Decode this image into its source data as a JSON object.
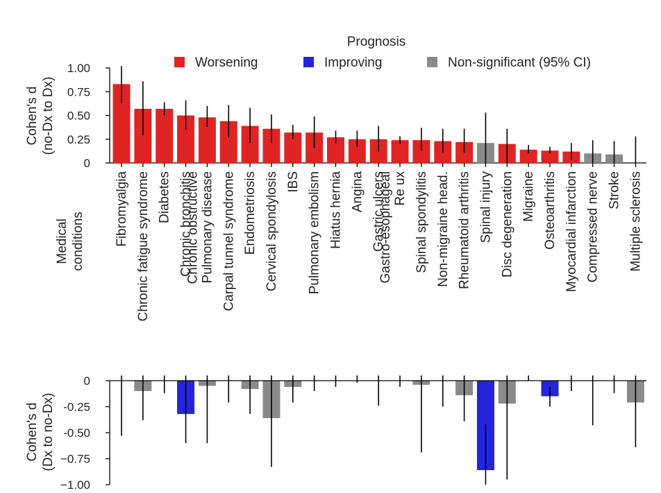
{
  "chart_data": {
    "type": "bar",
    "title": "",
    "legend": {
      "title": "Prognosis",
      "placement": "top-right",
      "entries": [
        {
          "label": "Worsening",
          "color": "#e02424"
        },
        {
          "label": "Improving",
          "color": "#2424dd"
        },
        {
          "label": "Non-significant (95% CI)",
          "color": "#8a8a8a"
        }
      ]
    },
    "xlabel": [
      "Medical",
      "conditions"
    ],
    "categories": [
      [
        "Fibromyalgia"
      ],
      [
        "Chronic fatigue syndrome"
      ],
      [
        "Diabetes"
      ],
      [
        "Chronic bronchitis"
      ],
      [
        "Chronic obstructive",
        "Pulmonary disease"
      ],
      [
        "Carpal tunnel syndrome"
      ],
      [
        "Endometriosis"
      ],
      [
        "Cervical spondylosis"
      ],
      [
        "IBS"
      ],
      [
        "Pulmonary embolism"
      ],
      [
        "Hiatus hernia"
      ],
      [
        "Angina"
      ],
      [
        "Gastric ulcers"
      ],
      [
        "Gastro-esophageal",
        "Re  ux"
      ],
      [
        "Spinal spondylitis"
      ],
      [
        "Non-migraine head."
      ],
      [
        "Rheumatoid arthritis"
      ],
      [
        "Spinal injury"
      ],
      [
        "Disc degeneration"
      ],
      [
        "Migraine"
      ],
      [
        "Osteoarthritis"
      ],
      [
        "Myocardial infarction"
      ],
      [
        "Compressed nerve"
      ],
      [
        "Stroke"
      ],
      [
        "Multiple sclerosis"
      ]
    ],
    "top": {
      "ylabel": [
        "Cohen's d",
        "(no-Dx to Dx)"
      ],
      "ylim": [
        0,
        1.0
      ],
      "yticks": [
        0,
        0.25,
        0.5,
        0.75,
        1.0
      ],
      "ytick_labels": [
        "0",
        "0.25",
        "0.50",
        "0.75",
        "1.00"
      ],
      "values": [
        0.83,
        0.57,
        0.57,
        0.5,
        0.48,
        0.44,
        0.39,
        0.36,
        0.32,
        0.32,
        0.27,
        0.25,
        0.25,
        0.24,
        0.24,
        0.23,
        0.22,
        0.21,
        0.2,
        0.14,
        0.13,
        0.12,
        0.1,
        0.09,
        0.0
      ],
      "ci_low": [
        0.63,
        0.29,
        0.5,
        0.35,
        0.38,
        0.27,
        0.21,
        0.21,
        0.25,
        0.16,
        0.21,
        0.17,
        0.12,
        0.2,
        0.13,
        0.11,
        0.11,
        0.0,
        0.0,
        0.1,
        0.1,
        0.03,
        0.0,
        0.0,
        0.0
      ],
      "ci_high": [
        1.02,
        0.86,
        0.64,
        0.66,
        0.6,
        0.61,
        0.58,
        0.51,
        0.4,
        0.49,
        0.34,
        0.34,
        0.39,
        0.28,
        0.37,
        0.36,
        0.36,
        0.53,
        0.36,
        0.19,
        0.17,
        0.21,
        0.24,
        0.23,
        0.28
      ],
      "status": [
        "w",
        "w",
        "w",
        "w",
        "w",
        "w",
        "w",
        "w",
        "w",
        "w",
        "w",
        "w",
        "w",
        "w",
        "w",
        "w",
        "w",
        "n",
        "w",
        "w",
        "w",
        "w",
        "n",
        "n",
        "n"
      ]
    },
    "bottom": {
      "ylabel": [
        "Cohen's d",
        "(Dx to no-Dx)"
      ],
      "ylim": [
        -1.0,
        0
      ],
      "yticks": [
        0,
        -0.25,
        -0.5,
        -0.75,
        -1.0
      ],
      "ytick_labels": [
        "0",
        "-0.25",
        "-0.50",
        "−0.75",
        "−1.00"
      ],
      "values": [
        0.0,
        -0.1,
        0.0,
        -0.32,
        -0.05,
        0.0,
        -0.08,
        -0.36,
        -0.06,
        0.0,
        0.0,
        0.0,
        0.0,
        0.0,
        -0.04,
        0.0,
        -0.14,
        -0.86,
        -0.22,
        0.0,
        -0.15,
        0.0,
        0.0,
        0.0,
        -0.21
      ],
      "ci_low": [
        -0.53,
        -0.38,
        -0.12,
        -0.6,
        -0.6,
        -0.21,
        -0.32,
        -0.83,
        -0.21,
        -0.1,
        -0.06,
        -0.02,
        -0.24,
        -0.06,
        -0.69,
        -0.25,
        -0.39,
        -1.0,
        -0.95,
        0.0,
        -0.25,
        -0.1,
        -0.43,
        -0.12,
        -0.64
      ],
      "ci_high": [
        0.05,
        0.05,
        0.05,
        0.05,
        0.05,
        0.05,
        0.05,
        0.05,
        0.05,
        0.05,
        0.05,
        0.05,
        0.05,
        0.05,
        0.05,
        0.05,
        0.05,
        -0.42,
        0.05,
        0.05,
        -0.06,
        0.05,
        0.05,
        0.05,
        0.05
      ],
      "status": [
        "n",
        "n",
        "n",
        "i",
        "n",
        "n",
        "n",
        "n",
        "n",
        "n",
        "n",
        "n",
        "n",
        "n",
        "n",
        "n",
        "n",
        "i",
        "n",
        "n",
        "i",
        "n",
        "n",
        "n",
        "n"
      ]
    }
  }
}
